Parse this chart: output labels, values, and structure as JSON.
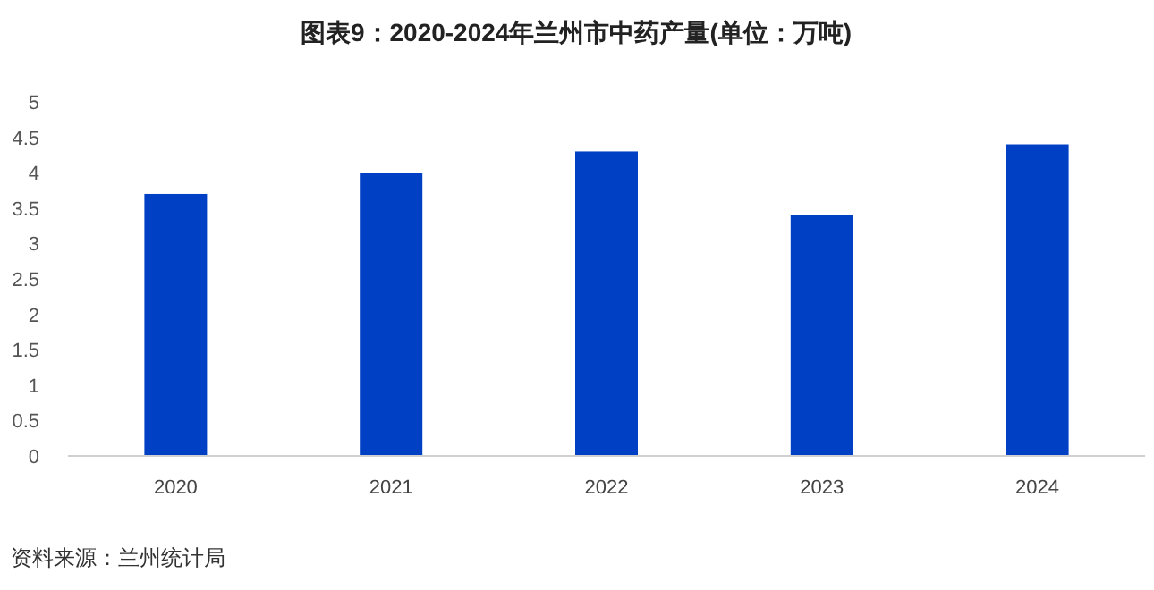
{
  "chart_data": {
    "type": "bar",
    "title": "图表9：2020-2024年兰州市中药产量(单位：万吨)",
    "categories": [
      "2020",
      "2021",
      "2022",
      "2023",
      "2024"
    ],
    "values": [
      3.7,
      4.0,
      4.3,
      3.4,
      4.4
    ],
    "color": "#0040c4",
    "ylim": [
      0,
      5
    ],
    "yticks": [
      0,
      0.5,
      1,
      1.5,
      2,
      2.5,
      3,
      3.5,
      4,
      4.5,
      5
    ],
    "grid": false,
    "annotations": [
      "资料来源：兰州统计局"
    ]
  }
}
